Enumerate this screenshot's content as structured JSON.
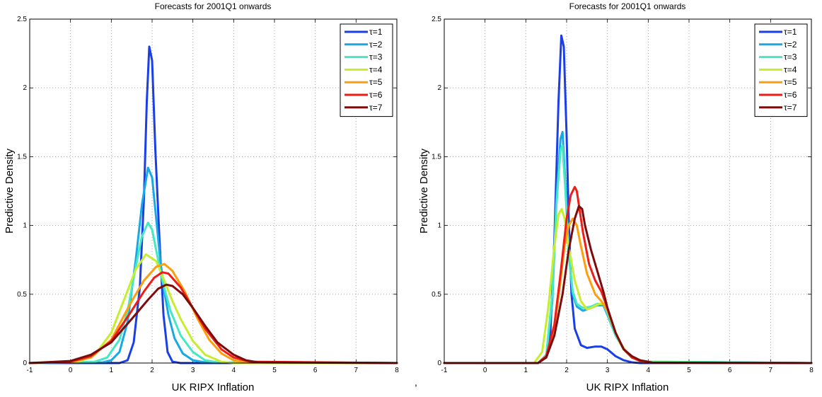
{
  "separator": ",",
  "chart_data": [
    {
      "type": "line",
      "title": "Forecasts for 2001Q1 onwards",
      "xlabel": "UK RIPX Inflation",
      "ylabel": "Predictive Density",
      "xlim": [
        -1,
        8
      ],
      "ylim": [
        0,
        2.5
      ],
      "xticks": [
        "-1",
        "0",
        "1",
        "2",
        "3",
        "4",
        "5",
        "6",
        "7",
        "8"
      ],
      "yticks": [
        "0",
        "0.5",
        "1",
        "1.5",
        "2",
        "2.5"
      ],
      "grid": true,
      "legend_position": "top-right",
      "series": [
        {
          "name": "τ=1",
          "color": "#1a3ee8",
          "x": [
            -1,
            1.2,
            1.4,
            1.55,
            1.7,
            1.8,
            1.87,
            1.93,
            2.0,
            2.08,
            2.18,
            2.28,
            2.38,
            2.5,
            2.7,
            8
          ],
          "y": [
            0,
            0,
            0.02,
            0.15,
            0.55,
            1.2,
            1.9,
            2.3,
            2.2,
            1.55,
            0.9,
            0.35,
            0.08,
            0.01,
            0,
            0
          ]
        },
        {
          "name": "τ=2",
          "color": "#17a9e6",
          "x": [
            -1,
            0.8,
            1.0,
            1.2,
            1.4,
            1.6,
            1.75,
            1.9,
            2.0,
            2.1,
            2.2,
            2.3,
            2.4,
            2.55,
            2.75,
            3.0,
            3.3,
            8
          ],
          "y": [
            0,
            0.005,
            0.02,
            0.08,
            0.3,
            0.75,
            1.15,
            1.42,
            1.35,
            1.05,
            0.75,
            0.52,
            0.35,
            0.18,
            0.07,
            0.02,
            0.005,
            0
          ]
        },
        {
          "name": "τ=3",
          "color": "#45e8c3",
          "x": [
            -1,
            0.6,
            0.9,
            1.2,
            1.4,
            1.6,
            1.75,
            1.9,
            2.0,
            2.1,
            2.25,
            2.45,
            2.7,
            3.0,
            3.3,
            3.6,
            8
          ],
          "y": [
            0,
            0.01,
            0.04,
            0.17,
            0.38,
            0.7,
            0.92,
            1.02,
            0.97,
            0.82,
            0.6,
            0.38,
            0.2,
            0.08,
            0.02,
            0.005,
            0
          ]
        },
        {
          "name": "τ=4",
          "color": "#c6ee2f",
          "x": [
            -1,
            0.2,
            0.6,
            1.0,
            1.3,
            1.6,
            1.85,
            2.1,
            2.3,
            2.5,
            2.7,
            3.0,
            3.3,
            3.7,
            4.0,
            8
          ],
          "y": [
            0,
            0.01,
            0.06,
            0.22,
            0.45,
            0.68,
            0.79,
            0.74,
            0.6,
            0.45,
            0.32,
            0.16,
            0.06,
            0.01,
            0,
            0
          ]
        },
        {
          "name": "τ=5",
          "color": "#ff9e0d",
          "x": [
            -1,
            0.0,
            0.5,
            1.0,
            1.5,
            1.8,
            2.1,
            2.3,
            2.5,
            2.8,
            3.1,
            3.4,
            3.7,
            4.0,
            4.3,
            8
          ],
          "y": [
            0,
            0.005,
            0.04,
            0.17,
            0.45,
            0.6,
            0.7,
            0.72,
            0.67,
            0.52,
            0.33,
            0.17,
            0.07,
            0.02,
            0.005,
            0
          ]
        },
        {
          "name": "τ=6",
          "color": "#f01c15",
          "x": [
            -1,
            0.0,
            0.5,
            1.0,
            1.5,
            1.8,
            2.05,
            2.25,
            2.4,
            2.7,
            3.0,
            3.3,
            3.7,
            4.0,
            4.4,
            8
          ],
          "y": [
            0,
            0.01,
            0.05,
            0.16,
            0.38,
            0.52,
            0.62,
            0.66,
            0.65,
            0.55,
            0.4,
            0.25,
            0.1,
            0.04,
            0.01,
            0
          ]
        },
        {
          "name": "τ=7",
          "color": "#7e0b0b",
          "x": [
            -1,
            0.0,
            0.5,
            1.0,
            1.5,
            1.9,
            2.15,
            2.35,
            2.5,
            2.75,
            3.0,
            3.3,
            3.6,
            4.0,
            4.3,
            4.6,
            8
          ],
          "y": [
            0,
            0.015,
            0.06,
            0.15,
            0.32,
            0.46,
            0.54,
            0.57,
            0.56,
            0.5,
            0.4,
            0.27,
            0.15,
            0.06,
            0.02,
            0.005,
            0
          ]
        }
      ]
    },
    {
      "type": "line",
      "title": "Forecasts for 2001Q1 onwards",
      "xlabel": "UK RIPX Inflation",
      "ylabel": "Predictive Density",
      "xlim": [
        -1,
        8
      ],
      "ylim": [
        0,
        2.5
      ],
      "xticks": [
        "-1",
        "0",
        "1",
        "2",
        "3",
        "4",
        "5",
        "6",
        "7",
        "8"
      ],
      "yticks": [
        "0",
        "0.5",
        "1",
        "1.5",
        "2",
        "2.5"
      ],
      "grid": true,
      "legend_position": "top-right",
      "series": [
        {
          "name": "τ=1",
          "color": "#1a3ee8",
          "x": [
            -1,
            1.3,
            1.5,
            1.6,
            1.7,
            1.8,
            1.87,
            1.93,
            2.0,
            2.05,
            2.12,
            2.2,
            2.35,
            2.5,
            2.7,
            2.85,
            3.0,
            3.2,
            3.4,
            3.6,
            3.8,
            8
          ],
          "y": [
            0,
            0,
            0.05,
            0.2,
            0.9,
            1.9,
            2.38,
            2.3,
            1.65,
            1.05,
            0.5,
            0.25,
            0.13,
            0.11,
            0.12,
            0.12,
            0.1,
            0.05,
            0.02,
            0.005,
            0,
            0
          ]
        },
        {
          "name": "τ=2",
          "color": "#17a9e6",
          "x": [
            -1,
            1.3,
            1.5,
            1.65,
            1.75,
            1.85,
            1.9,
            1.97,
            2.05,
            2.15,
            2.25,
            2.4,
            2.6,
            2.75,
            2.9,
            3.0,
            3.2,
            3.4,
            3.6,
            3.8,
            4.0,
            8
          ],
          "y": [
            0,
            0,
            0.05,
            0.45,
            1.2,
            1.63,
            1.68,
            1.3,
            0.8,
            0.5,
            0.41,
            0.38,
            0.4,
            0.42,
            0.42,
            0.35,
            0.2,
            0.1,
            0.04,
            0.02,
            0.01,
            0
          ]
        },
        {
          "name": "τ=3",
          "color": "#45e8c3",
          "x": [
            -1,
            1.3,
            1.5,
            1.65,
            1.75,
            1.85,
            1.9,
            1.97,
            2.05,
            2.15,
            2.25,
            2.4,
            2.6,
            2.75,
            2.9,
            3.0,
            3.2,
            3.4,
            3.6,
            3.8,
            4.0,
            8
          ],
          "y": [
            0,
            0,
            0.06,
            0.5,
            1.15,
            1.55,
            1.58,
            1.25,
            0.8,
            0.52,
            0.43,
            0.4,
            0.41,
            0.43,
            0.43,
            0.36,
            0.2,
            0.1,
            0.04,
            0.02,
            0.01,
            0
          ]
        },
        {
          "name": "τ=4",
          "color": "#c6ee2f",
          "x": [
            -1,
            1.2,
            1.4,
            1.55,
            1.7,
            1.8,
            1.88,
            1.95,
            2.05,
            2.2,
            2.35,
            2.5,
            2.6,
            2.8,
            2.95,
            3.1,
            3.3,
            3.5,
            3.7,
            4.0,
            8
          ],
          "y": [
            0,
            0,
            0.08,
            0.4,
            0.85,
            1.08,
            1.12,
            1.05,
            0.85,
            0.6,
            0.45,
            0.39,
            0.4,
            0.43,
            0.43,
            0.3,
            0.15,
            0.07,
            0.03,
            0.005,
            0
          ]
        },
        {
          "name": "τ=5",
          "color": "#ff9e0d",
          "x": [
            -1,
            1.3,
            1.5,
            1.7,
            1.85,
            1.95,
            2.05,
            2.15,
            2.25,
            2.35,
            2.5,
            2.7,
            2.85,
            3.0,
            3.2,
            3.4,
            3.6,
            3.8,
            4.1,
            8
          ],
          "y": [
            0,
            0,
            0.05,
            0.25,
            0.6,
            0.85,
            1.0,
            1.05,
            1.0,
            0.85,
            0.65,
            0.5,
            0.45,
            0.38,
            0.22,
            0.1,
            0.04,
            0.015,
            0.002,
            0
          ]
        },
        {
          "name": "τ=6",
          "color": "#f01c15",
          "x": [
            -1,
            1.3,
            1.5,
            1.7,
            1.85,
            2.0,
            2.1,
            2.2,
            2.25,
            2.3,
            2.4,
            2.55,
            2.7,
            2.85,
            3.0,
            3.2,
            3.4,
            3.6,
            3.8,
            4.1,
            8
          ],
          "y": [
            0,
            0,
            0.05,
            0.28,
            0.65,
            1.05,
            1.22,
            1.28,
            1.25,
            1.15,
            0.95,
            0.72,
            0.6,
            0.52,
            0.4,
            0.22,
            0.1,
            0.04,
            0.015,
            0.002,
            0
          ]
        },
        {
          "name": "τ=7",
          "color": "#7e0b0b",
          "x": [
            -1,
            1.3,
            1.5,
            1.7,
            1.9,
            2.05,
            2.2,
            2.3,
            2.38,
            2.45,
            2.6,
            2.75,
            2.9,
            3.0,
            3.2,
            3.4,
            3.6,
            3.8,
            4.1,
            8
          ],
          "y": [
            0,
            0,
            0.04,
            0.2,
            0.5,
            0.82,
            1.05,
            1.14,
            1.12,
            1.0,
            0.82,
            0.67,
            0.52,
            0.4,
            0.22,
            0.1,
            0.05,
            0.02,
            0.003,
            0
          ]
        }
      ]
    }
  ]
}
